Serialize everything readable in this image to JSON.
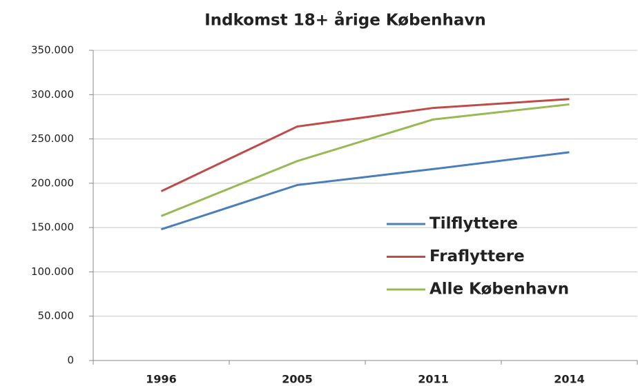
{
  "chart_data": {
    "type": "line",
    "title": "Indkomst 18+ årige København",
    "categories": [
      "1996",
      "2005",
      "2011",
      "2014"
    ],
    "series": [
      {
        "name": "Tilflyttere",
        "color": "#4a7ebb",
        "values": [
          148000,
          198000,
          216000,
          235000
        ]
      },
      {
        "name": "Fraflyttere",
        "color": "#be4b48",
        "values": [
          191000,
          264000,
          285000,
          295000
        ]
      },
      {
        "name": "Alle København",
        "color": "#98b954",
        "values": [
          163000,
          225000,
          272000,
          289000
        ]
      }
    ],
    "ylim": [
      0,
      350000
    ],
    "yticks": [
      0,
      {
        "value": 50000,
        "label": "50.000"
      },
      {
        "value": 100000,
        "label": "100.000"
      },
      {
        "value": 150000,
        "label": "150.000"
      },
      {
        "value": 200000,
        "label": "200.000"
      },
      {
        "value": 250000,
        "label": "250.000"
      },
      {
        "value": 300000,
        "label": "300.000"
      },
      {
        "value": 350000,
        "label": "350.000"
      }
    ],
    "grid": true,
    "legend": "right"
  }
}
